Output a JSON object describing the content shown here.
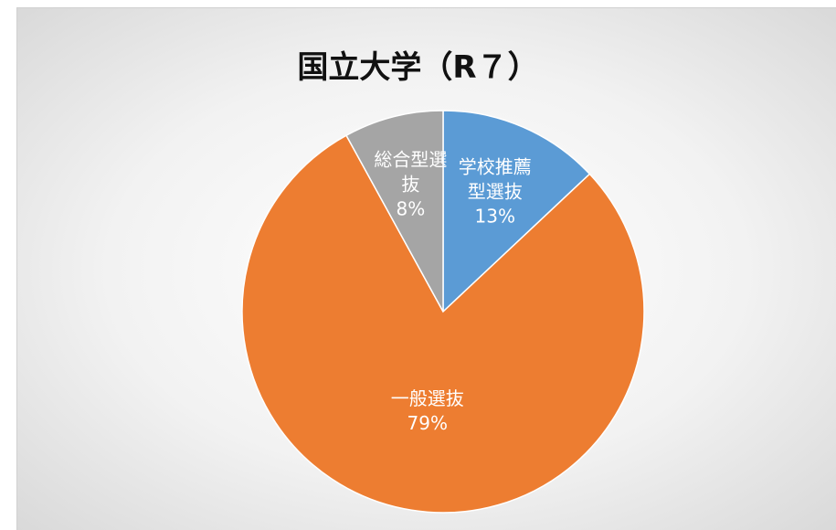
{
  "chart_data": {
    "type": "pie",
    "title": "国立大学（R７）",
    "categories": [
      "学校推薦型選抜",
      "一般選抜",
      "総合型選抜"
    ],
    "values": [
      13,
      79,
      8
    ],
    "value_labels": [
      "13%",
      "79%",
      "8%"
    ],
    "colors": [
      "#5b9bd5",
      "#ed7d31",
      "#a5a5a5"
    ]
  }
}
